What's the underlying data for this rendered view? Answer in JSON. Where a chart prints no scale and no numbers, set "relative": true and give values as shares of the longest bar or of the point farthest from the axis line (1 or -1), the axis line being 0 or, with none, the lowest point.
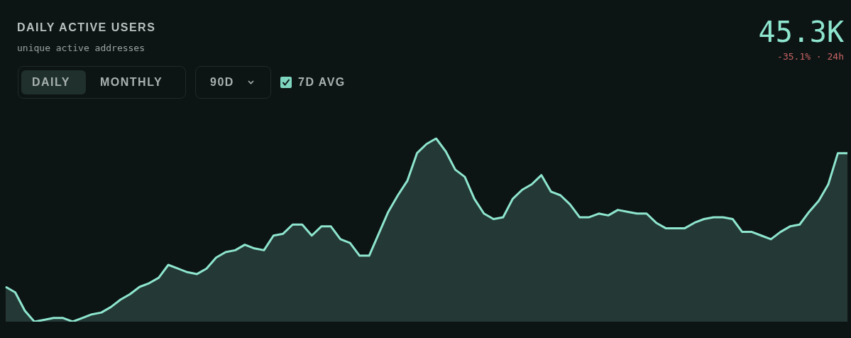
{
  "chart_data": {
    "type": "area",
    "title": "DAILY ACTIVE USERS",
    "subtitle": "unique active addresses",
    "relative": true,
    "categories": [
      null,
      null,
      null,
      null,
      null,
      null,
      null,
      null,
      null,
      null,
      null,
      null,
      null,
      null,
      null,
      null,
      null,
      null,
      null,
      null,
      null,
      null,
      null,
      null,
      null,
      null,
      null,
      null,
      null,
      null,
      null,
      null,
      null,
      null,
      null,
      null,
      null,
      null,
      null,
      null,
      null,
      null,
      null,
      null,
      null,
      null,
      null,
      null,
      null,
      null,
      null,
      null,
      null,
      null,
      null,
      null,
      null,
      null,
      null,
      null,
      null,
      null,
      null,
      null,
      null,
      null,
      null,
      null,
      null,
      null,
      null,
      null,
      null,
      null,
      null,
      null,
      null,
      null,
      null,
      null,
      null,
      null,
      null,
      null,
      null,
      null,
      null,
      null,
      null
    ],
    "series": [
      {
        "color": "#8ee6cf",
        "values": [
          0.19,
          0.16,
          0.06,
          0,
          0.01,
          0.02,
          0.02,
          0,
          0.02,
          0.04,
          0.05,
          0.08,
          0.12,
          0.15,
          0.19,
          0.21,
          0.24,
          0.31,
          0.29,
          0.27,
          0.26,
          0.29,
          0.35,
          0.38,
          0.39,
          0.42,
          0.4,
          0.39,
          0.47,
          0.48,
          0.53,
          0.53,
          0.47,
          0.52,
          0.52,
          0.45,
          0.43,
          0.36,
          0.36,
          0.48,
          0.6,
          0.69,
          0.77,
          0.92,
          0.97,
          1,
          0.93,
          0.83,
          0.79,
          0.67,
          0.59,
          0.56,
          0.57,
          0.67,
          0.72,
          0.75,
          0.8,
          0.71,
          0.69,
          0.64,
          0.57,
          0.57,
          0.59,
          0.58,
          0.61,
          0.6,
          0.59,
          0.59,
          0.54,
          0.51,
          0.51,
          0.51,
          0.54,
          0.56,
          0.57,
          0.57,
          0.56,
          0.49,
          0.49,
          0.47,
          0.45,
          0.49,
          0.52,
          0.53,
          0.6,
          0.66,
          0.75,
          0.92,
          0.92
        ]
      }
    ],
    "annotations": [
      "45.3K",
      "-35.1% · 24h",
      "DAILY",
      "MONTHLY",
      "90D",
      "7D AVG"
    ],
    "grid": false,
    "legend": false,
    "marker": "none",
    "line_style": "solid"
  }
}
